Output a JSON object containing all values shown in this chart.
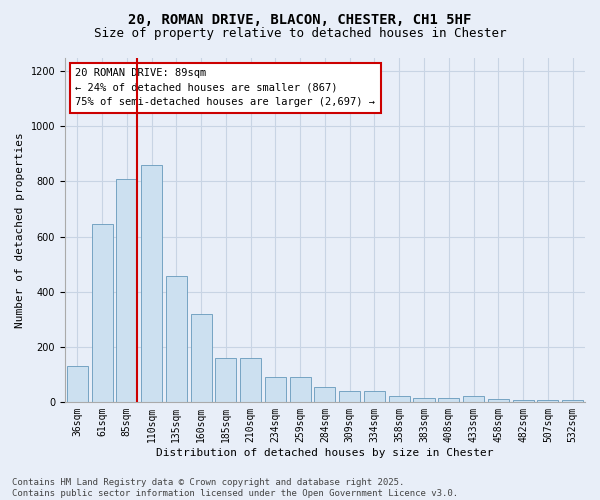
{
  "title_line1": "20, ROMAN DRIVE, BLACON, CHESTER, CH1 5HF",
  "title_line2": "Size of property relative to detached houses in Chester",
  "xlabel": "Distribution of detached houses by size in Chester",
  "ylabel": "Number of detached properties",
  "bar_labels": [
    "36sqm",
    "61sqm",
    "85sqm",
    "110sqm",
    "135sqm",
    "160sqm",
    "185sqm",
    "210sqm",
    "234sqm",
    "259sqm",
    "284sqm",
    "309sqm",
    "334sqm",
    "358sqm",
    "383sqm",
    "408sqm",
    "433sqm",
    "458sqm",
    "482sqm",
    "507sqm",
    "532sqm"
  ],
  "bar_values": [
    130,
    645,
    810,
    860,
    455,
    320,
    160,
    160,
    90,
    90,
    55,
    40,
    40,
    20,
    15,
    15,
    20,
    10,
    5,
    5,
    5
  ],
  "bar_color": "#cce0f0",
  "bar_edge_color": "#6699bb",
  "vline_color": "#cc0000",
  "vline_x_index": 2,
  "annotation_text": "20 ROMAN DRIVE: 89sqm\n← 24% of detached houses are smaller (867)\n75% of semi-detached houses are larger (2,697) →",
  "annotation_box_facecolor": "#ffffff",
  "annotation_box_edgecolor": "#cc0000",
  "ylim": [
    0,
    1250
  ],
  "yticks": [
    0,
    200,
    400,
    600,
    800,
    1000,
    1200
  ],
  "grid_color": "#c8d4e4",
  "background_color": "#e8eef8",
  "footer_line1": "Contains HM Land Registry data © Crown copyright and database right 2025.",
  "footer_line2": "Contains public sector information licensed under the Open Government Licence v3.0.",
  "title_fontsize": 10,
  "subtitle_fontsize": 9,
  "axis_label_fontsize": 8,
  "tick_fontsize": 7,
  "annotation_fontsize": 7.5,
  "footer_fontsize": 6.5,
  "ylabel_fontsize": 8
}
